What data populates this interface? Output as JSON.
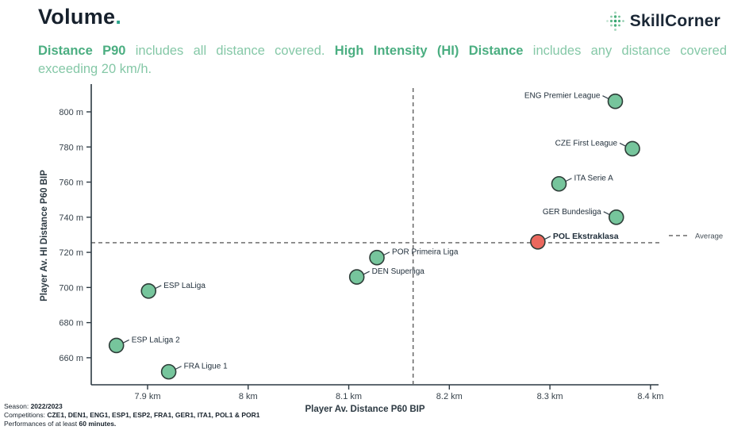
{
  "header": {
    "title": "Volume",
    "title_period": ".",
    "brand": "SkillCorner"
  },
  "subtitle": {
    "bold1": "Distance P90",
    "text1": " includes all distance covered. ",
    "bold2": "High Intensity (HI) Distance",
    "text2": " includes any distance covered",
    "line2": "exceeding 20 km/h."
  },
  "chart_data": {
    "type": "scatter",
    "title": "Volume",
    "xlabel": "Player Av. Distance P60 BIP",
    "ylabel": "Player Av. HI Distance P60 BIP",
    "x_unit": "km",
    "y_unit": "m",
    "xlim": [
      7.844,
      8.408
    ],
    "ylim": [
      644.6,
      814.9
    ],
    "grid": false,
    "x_ticks": [
      {
        "v": 7.9,
        "label": "7.9 km"
      },
      {
        "v": 8.0,
        "label": "8 km"
      },
      {
        "v": 8.1,
        "label": "8.1 km"
      },
      {
        "v": 8.2,
        "label": "8.2 km"
      },
      {
        "v": 8.3,
        "label": "8.3 km"
      },
      {
        "v": 8.4,
        "label": "8.4 km"
      }
    ],
    "y_ticks": [
      {
        "v": 800,
        "label": "800 m"
      },
      {
        "v": 780,
        "label": "780 m"
      },
      {
        "v": 760,
        "label": "760 m"
      },
      {
        "v": 740,
        "label": "740 m"
      },
      {
        "v": 720,
        "label": "720 m"
      },
      {
        "v": 700,
        "label": "700 m"
      },
      {
        "v": 680,
        "label": "680 m"
      },
      {
        "v": 660,
        "label": "660 m"
      }
    ],
    "average": {
      "x": 8.164,
      "y": 725.5,
      "label": "Average"
    },
    "colors": {
      "default_fill": "#76c59c",
      "highlight_fill": "#eb685e",
      "point_stroke": "#2e3d38",
      "dashed_line": "#5f5f5f",
      "axis": "#2c3942"
    },
    "points": [
      {
        "label": "ENG Premier League",
        "x": 8.365,
        "y": 806,
        "highlight": false,
        "label_side": "left"
      },
      {
        "label": "CZE First League",
        "x": 8.382,
        "y": 779,
        "highlight": false,
        "label_side": "left"
      },
      {
        "label": "ITA Serie A",
        "x": 8.309,
        "y": 759,
        "highlight": false,
        "label_side": "right"
      },
      {
        "label": "GER Bundesliga",
        "x": 8.366,
        "y": 740,
        "highlight": false,
        "label_side": "left"
      },
      {
        "label": "POL Ekstraklasa",
        "x": 8.288,
        "y": 726,
        "highlight": true,
        "label_side": "right"
      },
      {
        "label": "POR Primeira Liga",
        "x": 8.128,
        "y": 717,
        "highlight": false,
        "label_side": "right"
      },
      {
        "label": "DEN Superliga",
        "x": 8.108,
        "y": 706,
        "highlight": false,
        "label_side": "right"
      },
      {
        "label": "ESP LaLiga",
        "x": 7.901,
        "y": 698,
        "highlight": false,
        "label_side": "right"
      },
      {
        "label": "ESP LaLiga 2",
        "x": 7.869,
        "y": 667,
        "highlight": false,
        "label_side": "right"
      },
      {
        "label": "FRA Ligue 1",
        "x": 7.921,
        "y": 652,
        "highlight": false,
        "label_side": "right"
      }
    ]
  },
  "footer": {
    "season_label": "Season:",
    "season_value": "2022/2023",
    "competitions_label": "Competitions:",
    "competitions_value": "CZE1, DEN1, ENG1, ESP1, ESP2, FRA1, GER1, ITA1, POL1 & POR1",
    "performances_prefix": "Performances of at least",
    "performances_bold": "60 minutes."
  }
}
